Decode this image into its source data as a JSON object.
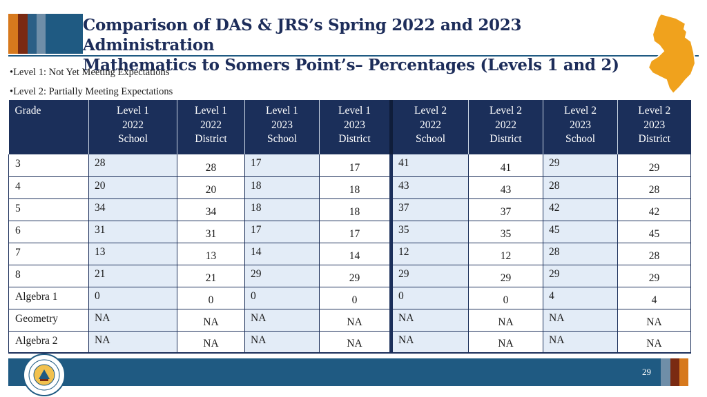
{
  "title": {
    "line1": "Comparison of DAS & JRS’s Spring 2022 and 2023 Administration",
    "line2": "Mathematics to Somers Point’s– Percentages (Levels 1 and 2)"
  },
  "bullets": [
    "•Level 1: Not Yet Meeting Expectations",
    "•Level 2: Partially Meeting Expectations"
  ],
  "table": {
    "headers": [
      "Grade",
      "Level 1\n2022\nSchool",
      "Level 1\n2022\nDistrict",
      "Level 1\n2023\nSchool",
      "Level 1\n2023\nDistrict",
      "Level 2\n2022\nSchool",
      "Level 2\n2022\nDistrict",
      "Level 2\n2023\nSchool",
      "Level 2\n2023\nDistrict"
    ],
    "rows": [
      [
        "3",
        "28",
        "28",
        "17",
        "17",
        "41",
        "41",
        "29",
        "29"
      ],
      [
        "4",
        "20",
        "20",
        "18",
        "18",
        "43",
        "43",
        "28",
        "28"
      ],
      [
        "5",
        "34",
        "34",
        "18",
        "18",
        "37",
        "37",
        "42",
        "42"
      ],
      [
        "6",
        "31",
        "31",
        "17",
        "17",
        "35",
        "35",
        "45",
        "45"
      ],
      [
        "7",
        "13",
        "13",
        "14",
        "14",
        "12",
        "12",
        "28",
        "28"
      ],
      [
        "8",
        "21",
        "21",
        "29",
        "29",
        "29",
        "29",
        "29",
        "29"
      ],
      [
        "Algebra 1",
        "0",
        "0",
        "0",
        "0",
        "0",
        "0",
        "4",
        "4"
      ],
      [
        "Geometry",
        "NA",
        "NA",
        "NA",
        "NA",
        "NA",
        "NA",
        "NA",
        "NA"
      ],
      [
        "Algebra 2",
        "NA",
        "NA",
        "NA",
        "NA",
        "NA",
        "NA",
        "NA",
        "NA"
      ]
    ]
  },
  "footer": {
    "page_number": "29"
  },
  "icons": {
    "state_map": "new-jersey-map-icon",
    "seal": "nj-department-of-education-seal"
  },
  "colors": {
    "navy": "#1b2f5a",
    "blue": "#1f5a82",
    "orange": "#d7791d",
    "rust": "#7a2a12",
    "light_blue_cell": "#e3ecf7"
  }
}
